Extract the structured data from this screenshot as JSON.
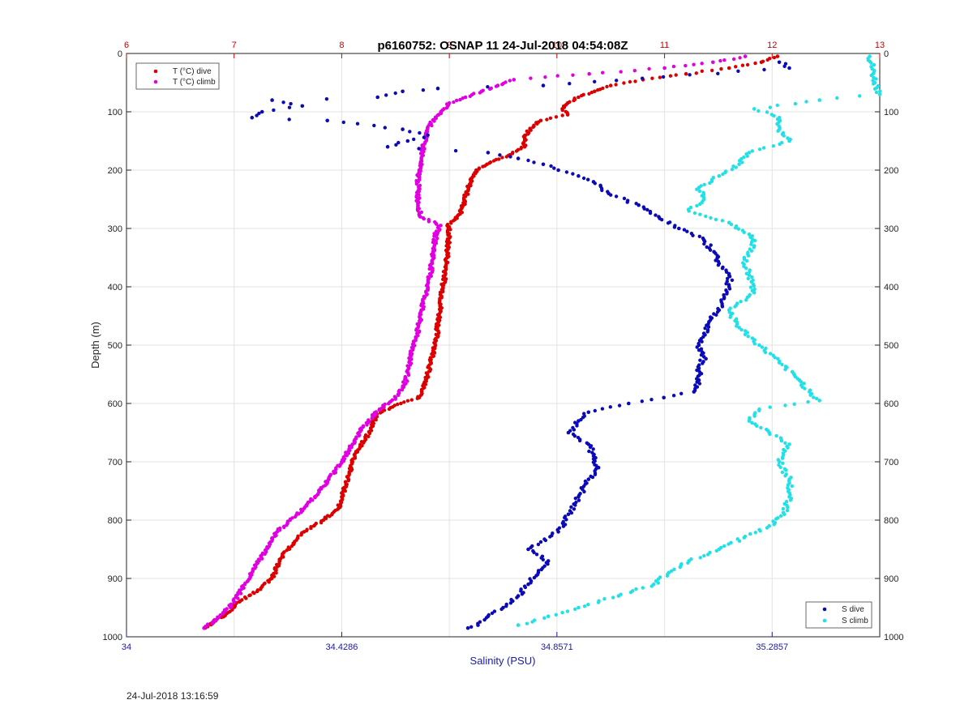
{
  "chart_data": {
    "type": "scatter",
    "title": "p6160752: OSNAP 11 24-Jul-2018 04:54:08Z",
    "ylabel": "Depth (m)",
    "xlabel": "Salinity (PSU)",
    "ylim": [
      0,
      1000
    ],
    "y_reversed": true,
    "y_ticks": [
      "0",
      "100",
      "200",
      "300",
      "400",
      "500",
      "600",
      "700",
      "800",
      "900",
      "1000"
    ],
    "top_axis": {
      "range": [
        6,
        13
      ],
      "ticks": [
        "6",
        "7",
        "8",
        "9",
        "10",
        "11",
        "12",
        "13"
      ],
      "color": "#cc0000"
    },
    "bottom_axis": {
      "range": [
        34,
        35.5
      ],
      "ticks": [
        "34",
        "34.4286",
        "34.8571",
        "35.2857"
      ],
      "tick_values": [
        34,
        34.4286,
        34.8571,
        35.2857
      ],
      "color": "#1a1aa6"
    },
    "grid": true,
    "legend_temperature": {
      "position": "top-left",
      "entries": [
        "T (°C) dive",
        "T (°C) climb"
      ]
    },
    "legend_salinity": {
      "position": "bottom-right",
      "entries": [
        "S dive",
        "S climb"
      ]
    },
    "series": [
      {
        "name": "T (°C) dive",
        "axis": "temperature",
        "color": "#dd0000",
        "depth": [
          5,
          15,
          25,
          35,
          45,
          55,
          65,
          75,
          85,
          95,
          105,
          115,
          130,
          145,
          160,
          175,
          190,
          200,
          215,
          230,
          245,
          260,
          275,
          285,
          295,
          300,
          320,
          350,
          380,
          400,
          430,
          460,
          500,
          530,
          560,
          590,
          600,
          620,
          640,
          660,
          680,
          700,
          720,
          740,
          760,
          780,
          800,
          820,
          840,
          860,
          880,
          900,
          920,
          940,
          960,
          975,
          985
        ],
        "values": [
          12.05,
          11.9,
          11.6,
          11.2,
          10.8,
          10.5,
          10.35,
          10.2,
          10.1,
          10.05,
          10.1,
          9.85,
          9.75,
          9.7,
          9.7,
          9.55,
          9.35,
          9.25,
          9.2,
          9.18,
          9.15,
          9.13,
          9.1,
          9.05,
          8.98,
          9.0,
          8.99,
          8.98,
          8.96,
          8.94,
          8.92,
          8.9,
          8.87,
          8.83,
          8.78,
          8.72,
          8.55,
          8.32,
          8.28,
          8.22,
          8.15,
          8.1,
          8.07,
          8.04,
          8.0,
          7.97,
          7.83,
          7.65,
          7.55,
          7.45,
          7.4,
          7.35,
          7.22,
          7.05,
          6.93,
          6.81,
          6.73
        ]
      },
      {
        "name": "T (°C) climb",
        "axis": "temperature",
        "color": "#e000e0",
        "depth": [
          5,
          15,
          25,
          35,
          45,
          55,
          65,
          75,
          85,
          95,
          105,
          120,
          140,
          160,
          180,
          200,
          220,
          250,
          280,
          295,
          305,
          330,
          360,
          400,
          440,
          480,
          520,
          560,
          590,
          610,
          640,
          670,
          700,
          730,
          760,
          780,
          800,
          820,
          850,
          880,
          910,
          940,
          960,
          975,
          985
        ],
        "values": [
          11.75,
          11.45,
          11.0,
          10.3,
          9.6,
          9.45,
          9.3,
          9.15,
          9.0,
          8.95,
          8.9,
          8.83,
          8.78,
          8.76,
          8.74,
          8.72,
          8.71,
          8.71,
          8.73,
          8.92,
          8.88,
          8.86,
          8.84,
          8.8,
          8.74,
          8.7,
          8.64,
          8.6,
          8.5,
          8.35,
          8.2,
          8.1,
          8.0,
          7.88,
          7.75,
          7.65,
          7.52,
          7.4,
          7.3,
          7.2,
          7.1,
          7.0,
          6.9,
          6.8,
          6.72
        ]
      },
      {
        "name": "S dive",
        "axis": "salinity",
        "color": "#0a0ab8",
        "depth": [
          15,
          25,
          55,
          60,
          65,
          75,
          80,
          90,
          100,
          110,
          115,
          130,
          140,
          150,
          160,
          170,
          180,
          190,
          200,
          210,
          220,
          240,
          260,
          280,
          300,
          320,
          340,
          360,
          380,
          400,
          420,
          440,
          460,
          480,
          500,
          520,
          540,
          560,
          580,
          590,
          600,
          615,
          630,
          650,
          670,
          690,
          710,
          730,
          760,
          790,
          820,
          850,
          870,
          890,
          910,
          930,
          950,
          965,
          980,
          985
        ],
        "values": [
          35.3,
          35.32,
          34.83,
          34.62,
          34.55,
          34.5,
          34.29,
          34.35,
          34.27,
          34.25,
          34.4,
          34.55,
          34.6,
          34.56,
          34.52,
          34.72,
          34.78,
          34.83,
          34.86,
          34.9,
          34.93,
          34.96,
          35.02,
          35.06,
          35.1,
          35.15,
          35.17,
          35.18,
          35.2,
          35.2,
          35.19,
          35.18,
          35.16,
          35.15,
          35.14,
          35.15,
          35.14,
          35.14,
          35.13,
          35.07,
          35.0,
          34.92,
          34.9,
          34.88,
          34.92,
          34.93,
          34.94,
          34.92,
          34.9,
          34.88,
          34.86,
          34.8,
          34.84,
          34.82,
          34.8,
          34.78,
          34.75,
          34.72,
          34.7,
          34.68
        ]
      },
      {
        "name": "S climb",
        "axis": "salinity",
        "color": "#22e0e8",
        "depth": [
          5,
          50,
          70,
          80,
          95,
          110,
          130,
          150,
          170,
          190,
          210,
          230,
          250,
          270,
          290,
          310,
          330,
          350,
          380,
          410,
          440,
          470,
          500,
          530,
          560,
          580,
          595,
          610,
          630,
          650,
          670,
          700,
          730,
          760,
          790,
          810,
          830,
          850,
          870,
          890,
          910,
          930,
          950,
          965,
          980
        ],
        "values": [
          35.48,
          35.49,
          35.5,
          35.38,
          35.25,
          35.3,
          35.3,
          35.32,
          35.24,
          35.22,
          35.18,
          35.14,
          35.15,
          35.12,
          35.2,
          35.24,
          35.25,
          35.23,
          35.24,
          35.25,
          35.2,
          35.22,
          35.26,
          35.3,
          35.34,
          35.36,
          35.38,
          35.26,
          35.24,
          35.28,
          35.32,
          35.3,
          35.32,
          35.32,
          35.31,
          35.28,
          35.23,
          35.18,
          35.12,
          35.08,
          35.05,
          34.98,
          34.9,
          34.84,
          34.78
        ]
      }
    ]
  },
  "footer": {
    "timestamp": "24-Jul-2018 13:16:59"
  }
}
